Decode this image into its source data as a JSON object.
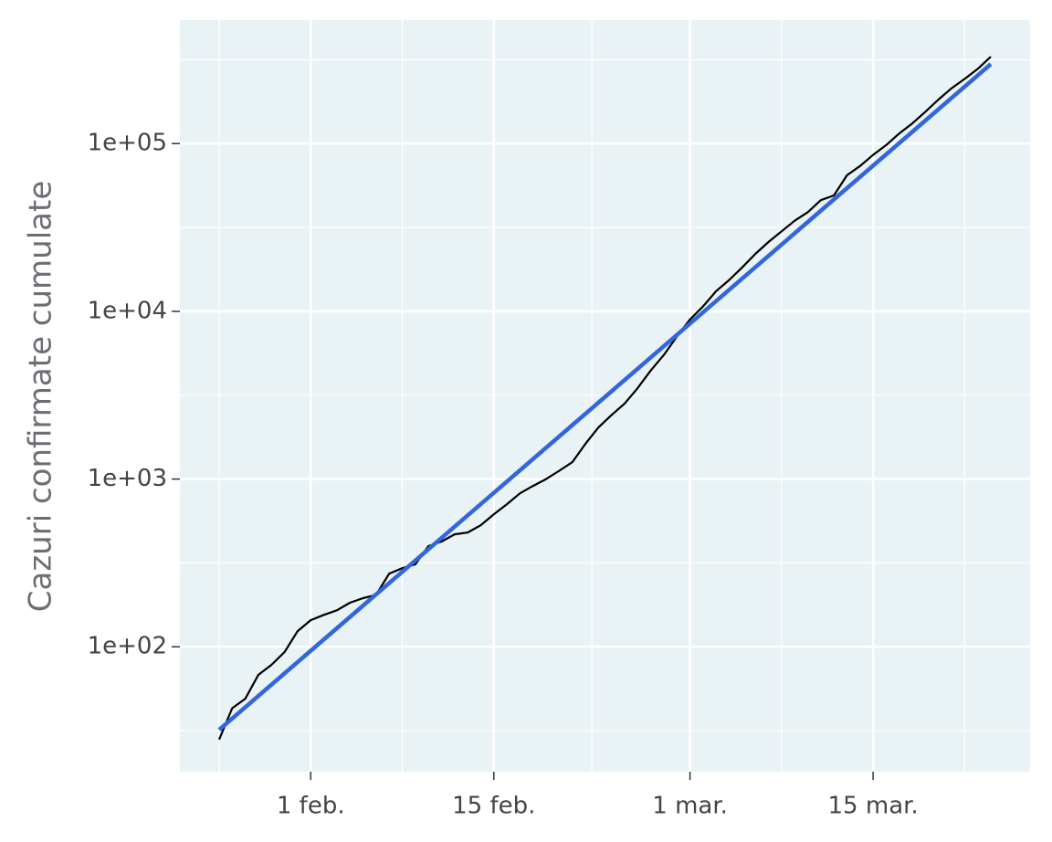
{
  "chart_data": {
    "type": "line",
    "y_label": "Cazuri confirmate cumulate",
    "log_y": true,
    "grid": true,
    "background": "#e9f2f5",
    "x": [
      -7,
      -6,
      -5,
      -4,
      -3,
      -2,
      -1,
      0,
      1,
      2,
      3,
      4,
      5,
      6,
      7,
      8,
      9,
      10,
      11,
      12,
      13,
      14,
      15,
      16,
      17,
      18,
      19,
      20,
      21,
      22,
      23,
      24,
      25,
      26,
      27,
      28,
      29,
      30,
      31,
      32,
      33,
      34,
      35,
      36,
      37,
      38,
      39,
      40,
      41,
      42,
      43,
      44,
      45,
      46,
      47,
      48,
      49,
      50,
      51,
      52
    ],
    "xlim": [
      -10,
      55
    ],
    "xticks": [
      {
        "value": 0,
        "label": "1 feb."
      },
      {
        "value": 14,
        "label": "15 feb."
      },
      {
        "value": 29,
        "label": "1 mar."
      },
      {
        "value": 43,
        "label": "15 mar."
      }
    ],
    "x_minor_grid": [
      -7,
      7,
      21.5,
      36,
      50
    ],
    "ylim": [
      18,
      545000
    ],
    "yticks": [
      {
        "value": 100,
        "label": "1e+02"
      },
      {
        "value": 1000,
        "label": "1e+03"
      },
      {
        "value": 10000,
        "label": "1e+04"
      },
      {
        "value": 100000,
        "label": "1e+05"
      }
    ],
    "y_minor_grid": [
      31.6,
      316,
      3162,
      31623,
      316228
    ],
    "series": [
      {
        "color": "#000000",
        "values": [
          28,
          43,
          49,
          68,
          78,
          93,
          124,
          144,
          155,
          165,
          183,
          195,
          204,
          273,
          294,
          310,
          398,
          424,
          468,
          480,
          530,
          617,
          708,
          822,
          910,
          1000,
          1120,
          1260,
          1620,
          2030,
          2410,
          2820,
          3490,
          4440,
          5500,
          7080,
          8950,
          10700,
          13200,
          15400,
          18300,
          22000,
          25900,
          30000,
          34700,
          39000,
          46000,
          49100,
          64800,
          73500,
          85700,
          98000,
          115000,
          132000,
          155000,
          183000,
          214000,
          243000,
          279000,
          330000
        ]
      },
      {
        "color": "#3366dd",
        "x": [
          -7,
          52
        ],
        "values": [
          32,
          298000
        ]
      }
    ]
  }
}
